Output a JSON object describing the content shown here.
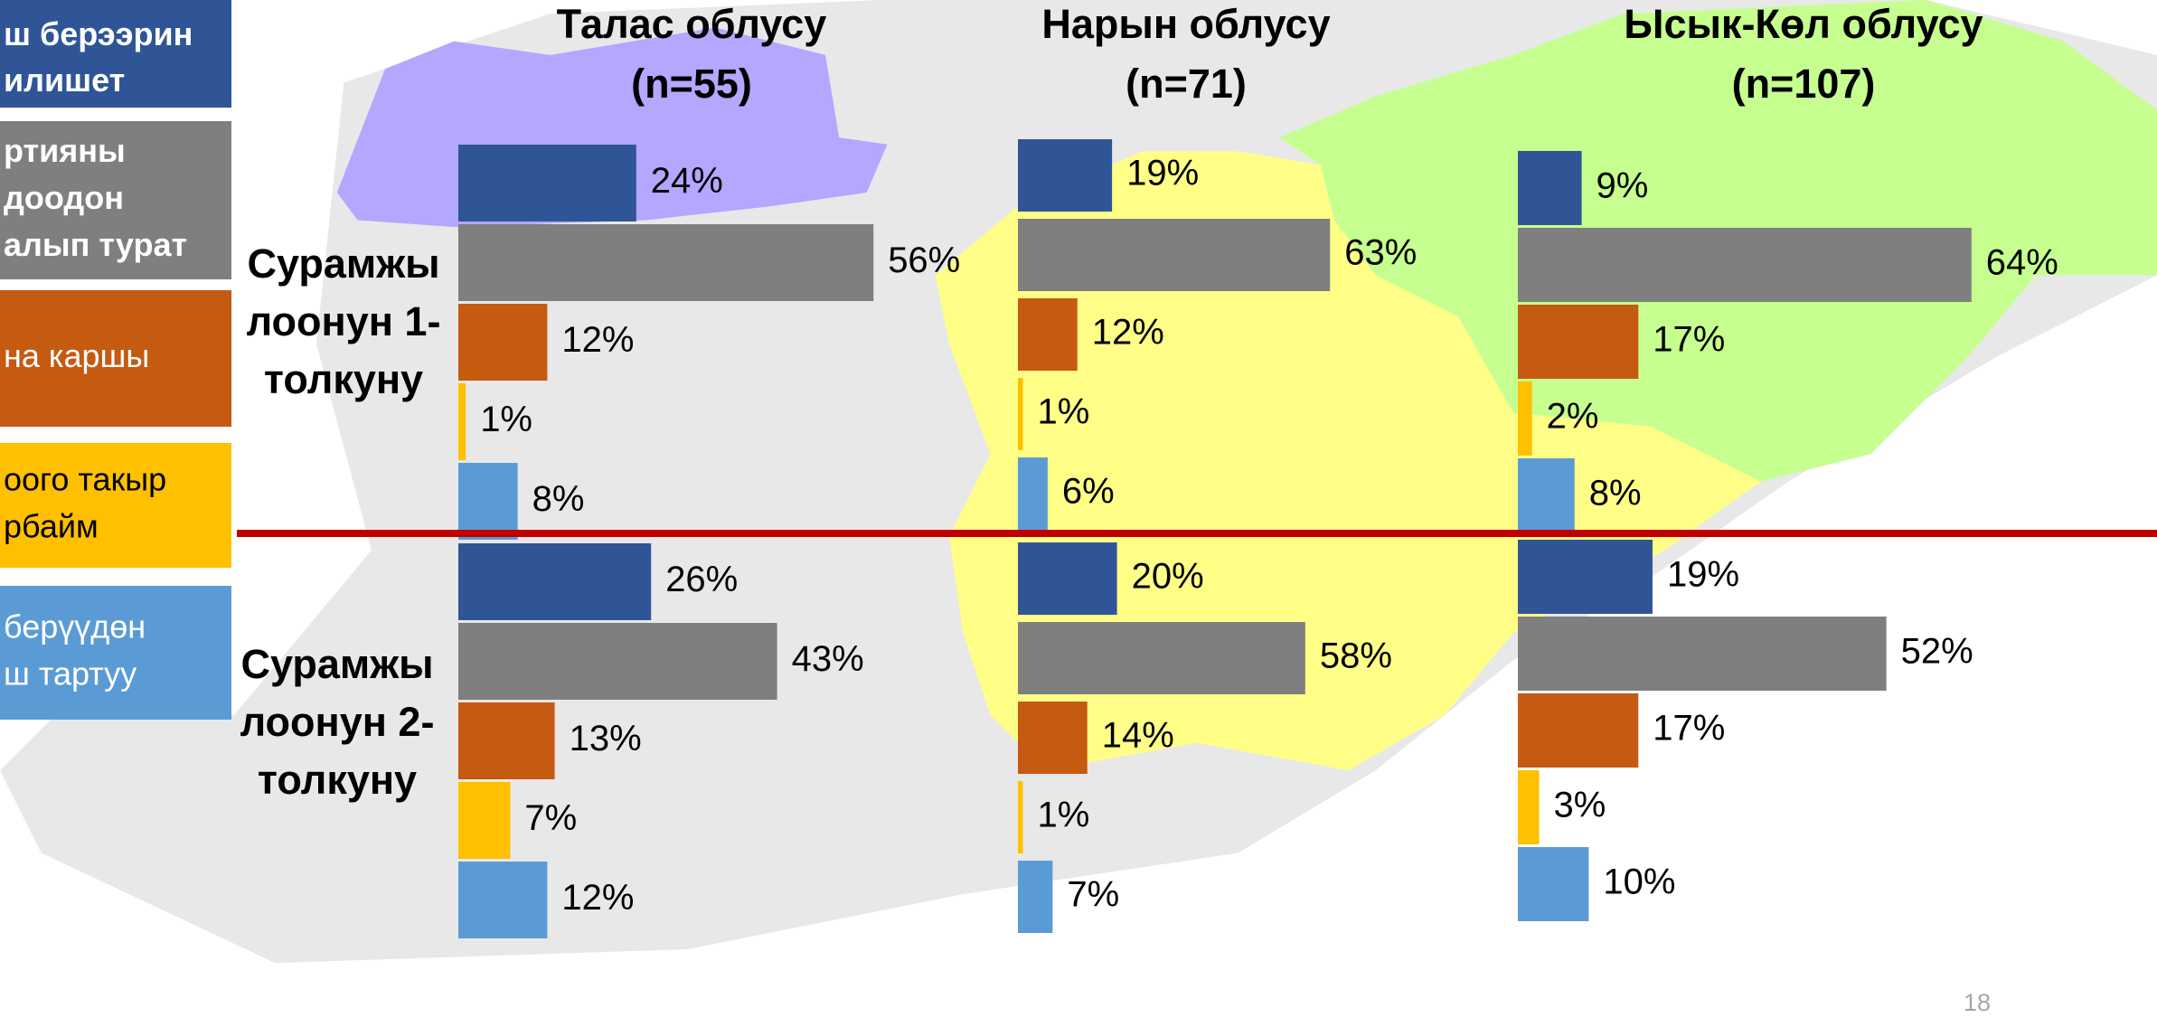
{
  "legend": [
    {
      "lines": [
        "ш берээрин",
        "илишет"
      ],
      "color": "#2f5597",
      "text_color": "#ffffff",
      "bold": true
    },
    {
      "lines": [
        "ртияны",
        "доодон",
        "алып турат"
      ],
      "color": "#7f7f7f",
      "text_color": "#ffffff",
      "bold": true
    },
    {
      "lines": [
        "на каршы"
      ],
      "color": "#c55a11",
      "text_color": "#ffffff",
      "bold": false
    },
    {
      "lines": [
        "оого такыр",
        "рбайм"
      ],
      "color": "#ffc000",
      "text_color": "#000000",
      "bold": false
    },
    {
      "lines": [
        "берүүдөн",
        "ш тартуу"
      ],
      "color": "#5b9bd5",
      "text_color": "#ffffff",
      "bold": false
    }
  ],
  "waves": [
    [
      "Сурамжы",
      "лоонун 1-",
      "толкуну"
    ],
    [
      "Сурамжы",
      "лоонун 2-",
      "толкуну"
    ]
  ],
  "page_number": "18",
  "chart_data": [
    {
      "type": "bar",
      "title": "Талас облусу",
      "subtitle": "(n=55)",
      "xlim": [
        0,
        100
      ],
      "series": [
        {
          "color": "#2f5597",
          "values": [
            24,
            26
          ],
          "value_labels": [
            "24%",
            "26%"
          ]
        },
        {
          "color": "#7f7f7f",
          "values": [
            56,
            43
          ],
          "value_labels": [
            "56%",
            "43%"
          ]
        },
        {
          "color": "#c55a11",
          "values": [
            12,
            13
          ],
          "value_labels": [
            "12%",
            "13%"
          ]
        },
        {
          "color": "#ffc000",
          "values": [
            1,
            7
          ],
          "value_labels": [
            "1%",
            "7%"
          ]
        },
        {
          "color": "#5b9bd5",
          "values": [
            8,
            12
          ],
          "value_labels": [
            "8%",
            "12%"
          ]
        }
      ]
    },
    {
      "type": "bar",
      "title": "Нарын облусу",
      "subtitle": "(n=71)",
      "xlim": [
        0,
        100
      ],
      "series": [
        {
          "color": "#2f5597",
          "values": [
            19,
            20
          ],
          "value_labels": [
            "19%",
            "20%"
          ]
        },
        {
          "color": "#7f7f7f",
          "values": [
            63,
            58
          ],
          "value_labels": [
            "63%",
            "58%"
          ]
        },
        {
          "color": "#c55a11",
          "values": [
            12,
            14
          ],
          "value_labels": [
            "12%",
            "14%"
          ]
        },
        {
          "color": "#ffc000",
          "values": [
            1,
            1
          ],
          "value_labels": [
            "1%",
            "1%"
          ]
        },
        {
          "color": "#5b9bd5",
          "values": [
            6,
            7
          ],
          "value_labels": [
            "6%",
            "7%"
          ]
        }
      ]
    },
    {
      "type": "bar",
      "title": "Ысык-Көл облусу",
      "subtitle": "(n=107)",
      "xlim": [
        0,
        100
      ],
      "series": [
        {
          "color": "#2f5597",
          "values": [
            9,
            19
          ],
          "value_labels": [
            "9%",
            "19%"
          ]
        },
        {
          "color": "#7f7f7f",
          "values": [
            64,
            52
          ],
          "value_labels": [
            "64%",
            "52%"
          ]
        },
        {
          "color": "#c55a11",
          "values": [
            17,
            17
          ],
          "value_labels": [
            "17%",
            "17%"
          ]
        },
        {
          "color": "#ffc000",
          "values": [
            2,
            3
          ],
          "value_labels": [
            "2%",
            "3%"
          ]
        },
        {
          "color": "#5b9bd5",
          "values": [
            8,
            10
          ],
          "value_labels": [
            "8%",
            "10%"
          ]
        }
      ]
    }
  ]
}
